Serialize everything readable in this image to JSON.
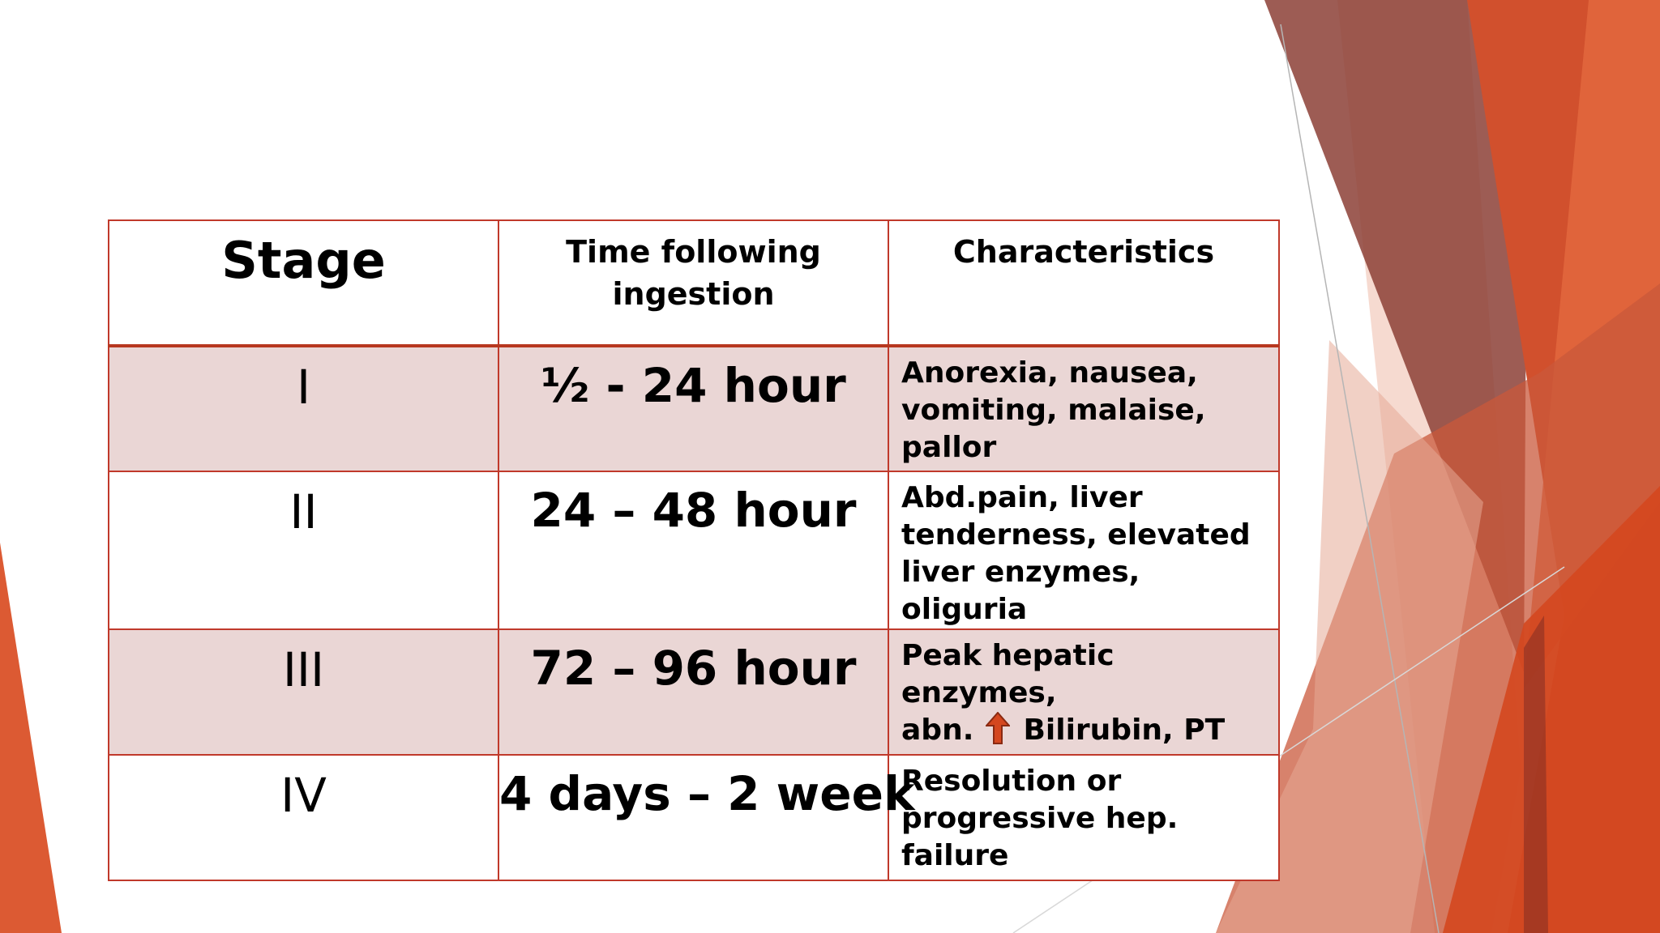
{
  "table": {
    "headers": {
      "stage": "Stage",
      "time_line1": "Time following",
      "time_line2": "ingestion",
      "characteristics": "Characteristics"
    },
    "rows": [
      {
        "stage": "I",
        "time": "½ - 24 hour",
        "char_line1": "Anorexia, nausea,",
        "char_line2": "vomiting, malaise, pallor"
      },
      {
        "stage": "II",
        "time": "24 – 48 hour",
        "char_line1": "Abd.pain, liver",
        "char_line2": "tenderness, elevated",
        "char_line3": "liver enzymes, oliguria"
      },
      {
        "stage": "III",
        "time": "72 – 96 hour",
        "char_line1": "Peak hepatic enzymes,",
        "char_line2_before_icon": "abn.",
        "char_icon": "up-arrow-icon",
        "char_line2_after_icon": "Bilirubin, PT"
      },
      {
        "stage": "IV",
        "time": "4 days – 2 week",
        "char_line1": "Resolution or",
        "char_line2": "progressive hep. failure"
      }
    ]
  },
  "colors": {
    "table_border": "#c0392b",
    "shaded_row": "#ead6d5",
    "accent_orange": "#d9542c",
    "accent_brown": "#8f4437",
    "arrow_fill": "#d4471f"
  }
}
